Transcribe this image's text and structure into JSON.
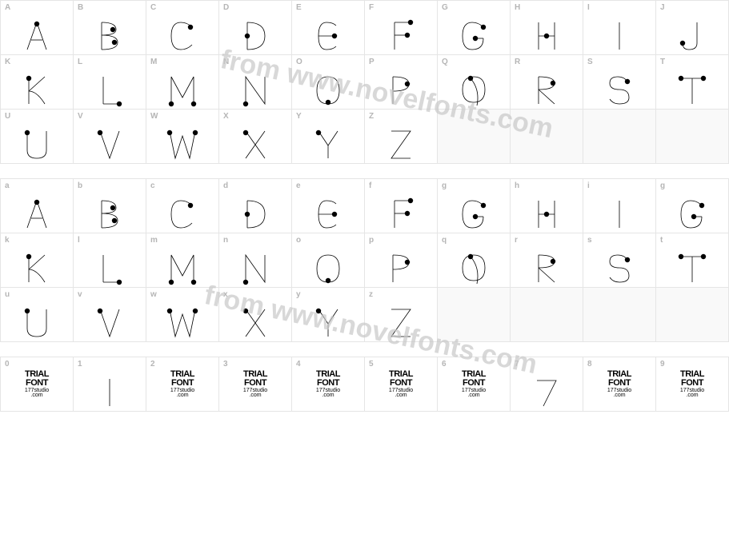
{
  "watermark_text": "from www.novelfonts.com",
  "watermark_color": "#c8c8c8",
  "watermark_font_size": 34,
  "grid_border_color": "#e5e5e5",
  "label_color": "#b5b5b5",
  "glyph_stroke": "#000000",
  "glyph_dot_fill": "#000000",
  "trial_font_text": "TRIAL FONT",
  "trial_font_studio": "177studio .com",
  "rows_upper": [
    {
      "labels": [
        "A",
        "B",
        "C",
        "D",
        "E",
        "F",
        "G",
        "H",
        "I",
        "J"
      ],
      "glyphs": [
        "A",
        "B",
        "C",
        "D",
        "E",
        "F",
        "G",
        "H",
        "I",
        "J"
      ]
    },
    {
      "labels": [
        "K",
        "L",
        "M",
        "N",
        "O",
        "P",
        "Q",
        "R",
        "S",
        "T"
      ],
      "glyphs": [
        "K",
        "L",
        "M",
        "N",
        "O",
        "P",
        "Q",
        "R",
        "S",
        "T"
      ]
    },
    {
      "labels": [
        "U",
        "V",
        "W",
        "X",
        "Y",
        "Z",
        "",
        "",
        "",
        ""
      ],
      "glyphs": [
        "U",
        "V",
        "W",
        "X",
        "Y",
        "Z",
        "",
        "",
        "",
        ""
      ]
    }
  ],
  "rows_lower": [
    {
      "labels": [
        "a",
        "b",
        "c",
        "d",
        "e",
        "f",
        "g",
        "h",
        "i",
        "g"
      ],
      "glyphs": [
        "A",
        "B",
        "C",
        "D",
        "E",
        "F",
        "G",
        "H",
        "I",
        "G"
      ]
    },
    {
      "labels": [
        "k",
        "l",
        "m",
        "n",
        "o",
        "p",
        "q",
        "r",
        "s",
        "t"
      ],
      "glyphs": [
        "K",
        "L",
        "M",
        "N",
        "O",
        "P",
        "Q",
        "R",
        "S",
        "T"
      ]
    },
    {
      "labels": [
        "u",
        "v",
        "w",
        "x",
        "y",
        "z",
        "",
        "",
        "",
        ""
      ],
      "glyphs": [
        "U",
        "V",
        "W",
        "X",
        "Y",
        "Z",
        "",
        "",
        "",
        ""
      ]
    }
  ],
  "num_row": {
    "labels": [
      "0",
      "1",
      "2",
      "3",
      "4",
      "5",
      "6",
      "7",
      "8",
      "9"
    ],
    "types": [
      "trial",
      "one",
      "trial",
      "trial",
      "trial",
      "trial",
      "trial",
      "seven",
      "trial",
      "trial"
    ]
  }
}
